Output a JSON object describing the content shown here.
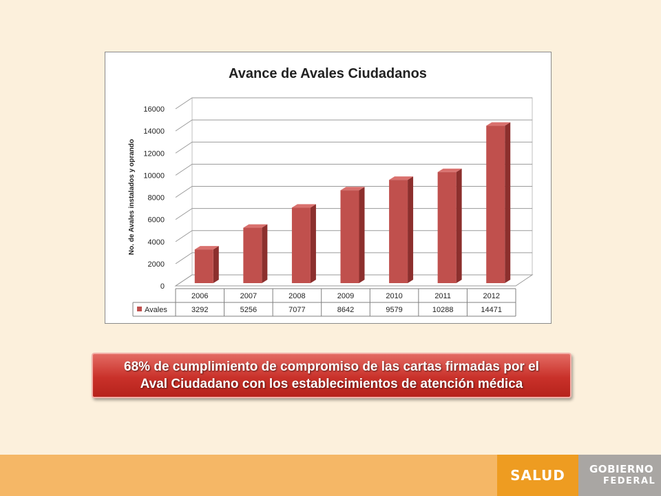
{
  "chart_data": {
    "type": "bar",
    "title": "Avance de Avales Ciudadanos",
    "xlabel": "",
    "ylabel": "No. de Avales  instalados y oprando",
    "categories": [
      "2006",
      "2007",
      "2008",
      "2009",
      "2010",
      "2011",
      "2012"
    ],
    "series": [
      {
        "name": "Avales",
        "values": [
          3292,
          5256,
          7077,
          8642,
          9579,
          10288,
          14471
        ]
      }
    ],
    "ylim": [
      0,
      16000
    ],
    "yticks": [
      0,
      2000,
      4000,
      6000,
      8000,
      10000,
      12000,
      14000,
      16000
    ],
    "grid": true,
    "legend": "data-table",
    "style": "3d-column",
    "colors": {
      "bar_front": "#c0504d",
      "bar_side": "#8c2f2d",
      "bar_top": "#d9716e"
    }
  },
  "banner": {
    "line1": "68% de cumplimiento de compromiso de las cartas firmadas por el",
    "line2": "Aval Ciudadano con los establecimientos de atención médica"
  },
  "footer": {
    "salud_label": "SALUD",
    "gobierno_line1": "GOBIERNO",
    "gobierno_line2": "FEDERAL"
  },
  "colors": {
    "page_background": "#fcf0dc",
    "footer_band": "#f5b766",
    "salud_block": "#ee9c21",
    "gobierno_block": "#a9a6a3",
    "banner": "#c9312a"
  }
}
